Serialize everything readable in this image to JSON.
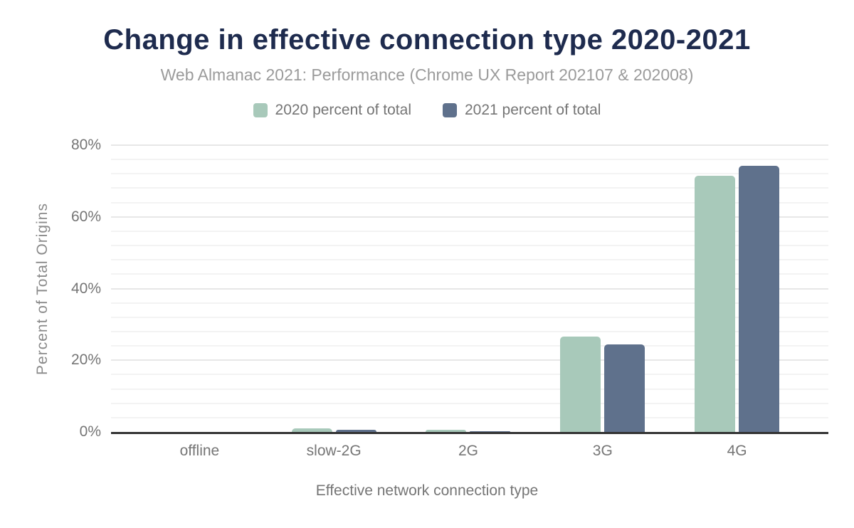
{
  "header": {
    "title": "Change in effective connection type 2020-2021",
    "subtitle": "Web Almanac 2021: Performance (Chrome UX Report 202107 & 202008)"
  },
  "colors": {
    "series_2020": "#a8c9ba",
    "series_2021": "#5f718c",
    "title_text": "#1e2b4e",
    "subtitle_text": "#9b9b9b",
    "axis_text": "#757575",
    "axis_line": "#333333",
    "gridline_major": "#e7e7e7",
    "gridline_minor": "#f3f3f3"
  },
  "chart_data": {
    "type": "bar",
    "title": "Change in effective connection type 2020-2021",
    "subtitle": "Web Almanac 2021: Performance (Chrome UX Report 202107 & 202008)",
    "categories": [
      "offline",
      "slow-2G",
      "2G",
      "3G",
      "4G"
    ],
    "series": [
      {
        "name": "2020 percent of total",
        "color": "#a8c9ba",
        "values": [
          0.0,
          0.9,
          0.5,
          26.6,
          71.5
        ]
      },
      {
        "name": "2021 percent of total",
        "color": "#5f718c",
        "values": [
          0.0,
          0.5,
          0.2,
          24.5,
          74.3
        ]
      }
    ],
    "xlabel": "Effective network connection type",
    "ylabel": "Percent of Total Origins",
    "ylim": [
      0,
      80
    ],
    "ytick_step": 20,
    "ytick_labels": [
      "0%",
      "20%",
      "40%",
      "60%",
      "80%"
    ],
    "minor_grid_step": 4,
    "grid": "on",
    "legend_position": "top"
  }
}
